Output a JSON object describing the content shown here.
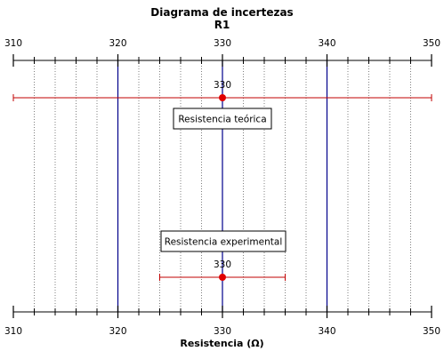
{
  "chart_data": {
    "type": "scatter",
    "title": "Diagrama de incertezas",
    "subtitle": "R1",
    "xlabel": "Resistencia (Ω)",
    "xlim": [
      310,
      350
    ],
    "major_ticks": [
      310,
      320,
      330,
      340,
      350
    ],
    "minor_tick_step": 2,
    "grid": "dotted vertical lines at minor ticks",
    "reference_lines": [
      320,
      330,
      340
    ],
    "series": [
      {
        "name": "Resistencia teórica",
        "value": 330,
        "value_label": "330",
        "error_low": 310,
        "error_high": 350
      },
      {
        "name": "Resistencia experimental",
        "value": 330,
        "value_label": "330",
        "error_low": 324,
        "error_high": 336
      }
    ],
    "colors": {
      "point": "#e00000",
      "errorbar": "#c00000",
      "reference": "#00008b",
      "axis": "#000000",
      "grid": "#808080"
    }
  }
}
